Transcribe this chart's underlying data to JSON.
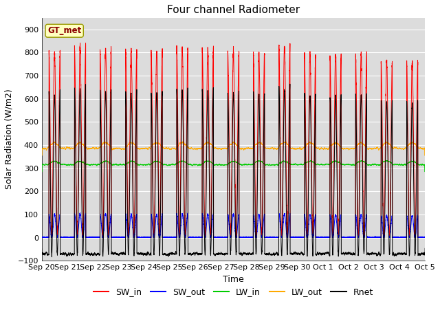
{
  "title": "Four channel Radiometer",
  "xlabel": "Time",
  "ylabel": "Solar Radiation (W/m2)",
  "ylim": [
    -100,
    950
  ],
  "yticks": [
    -100,
    0,
    100,
    200,
    300,
    400,
    500,
    600,
    700,
    800,
    900
  ],
  "bg_color": "#dcdcdc",
  "station_label": "GT_met",
  "line_colors": {
    "SW_in": "#ff0000",
    "SW_out": "#0000ff",
    "LW_in": "#00cc00",
    "LW_out": "#ffaa00",
    "Rnet": "#000000"
  },
  "n_days": 15,
  "x_tick_labels": [
    "Sep 20",
    "Sep 21",
    "Sep 22",
    "Sep 23",
    "Sep 24",
    "Sep 25",
    "Sep 26",
    "Sep 27",
    "Sep 28",
    "Sep 29",
    "Sep 30",
    "Oct 1",
    "Oct 2",
    "Oct 3",
    "Oct 4",
    "Oct 5"
  ],
  "SW_in_peaks": [
    800,
    825,
    815,
    805,
    805,
    815,
    815,
    800,
    795,
    830,
    795,
    790,
    795,
    765,
    760
  ],
  "LW_in_base": 315,
  "LW_out_base": 385,
  "Rnet_night": -85
}
